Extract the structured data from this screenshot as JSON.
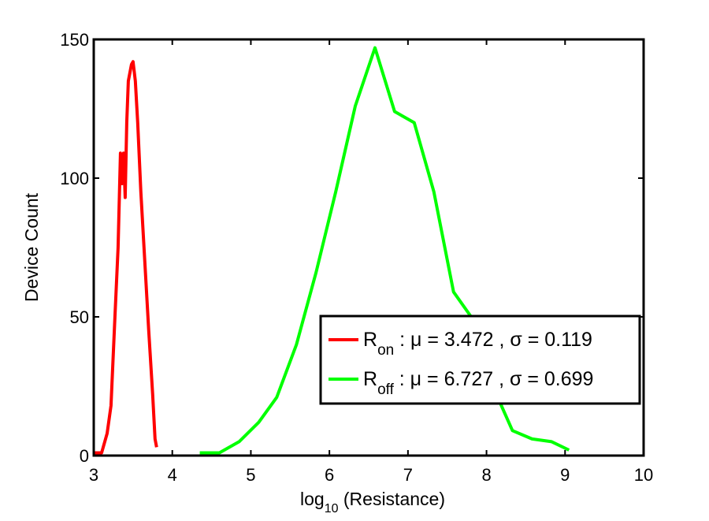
{
  "chart_data": {
    "type": "line",
    "xlabel": {
      "base": "log",
      "subscript": "10",
      "rest": " (Resistance)"
    },
    "ylabel": "Device Count",
    "xlim": [
      3,
      10
    ],
    "ylim": [
      0,
      150
    ],
    "xticks": [
      "3",
      "4",
      "5",
      "6",
      "7",
      "8",
      "9",
      "10"
    ],
    "yticks": [
      "0",
      "50",
      "100",
      "150"
    ],
    "grid": false,
    "legend_position": "lower-right",
    "series": [
      {
        "legend": {
          "main": "R",
          "sub": "on",
          "rest": " : μ = 3.472 , σ = 0.119"
        },
        "color": "#ff0000",
        "x": [
          3.0,
          3.1,
          3.17,
          3.22,
          3.27,
          3.31,
          3.34,
          3.36,
          3.38,
          3.4,
          3.42,
          3.44,
          3.46,
          3.48,
          3.5,
          3.53,
          3.56,
          3.6,
          3.65,
          3.7,
          3.75,
          3.78,
          3.8
        ],
        "y": [
          1,
          1,
          8,
          18,
          50,
          75,
          109,
          98,
          109,
          93,
          120,
          135,
          138,
          141,
          142,
          135,
          120,
          95,
          70,
          45,
          22,
          6,
          3
        ]
      },
      {
        "legend": {
          "main": "R",
          "sub": "off",
          "rest": " : μ = 6.727 , σ = 0.699"
        },
        "color": "#00ff00",
        "x": [
          4.35,
          4.6,
          4.85,
          5.1,
          5.33,
          5.58,
          5.83,
          6.08,
          6.33,
          6.58,
          6.83,
          7.08,
          7.33,
          7.58,
          7.83,
          8.08,
          8.33,
          8.58,
          8.83,
          9.05
        ],
        "y": [
          1,
          1,
          5,
          12,
          21,
          40,
          66,
          95,
          126,
          147,
          124,
          120,
          95,
          59,
          49,
          25,
          9,
          6,
          5,
          2
        ]
      }
    ]
  }
}
